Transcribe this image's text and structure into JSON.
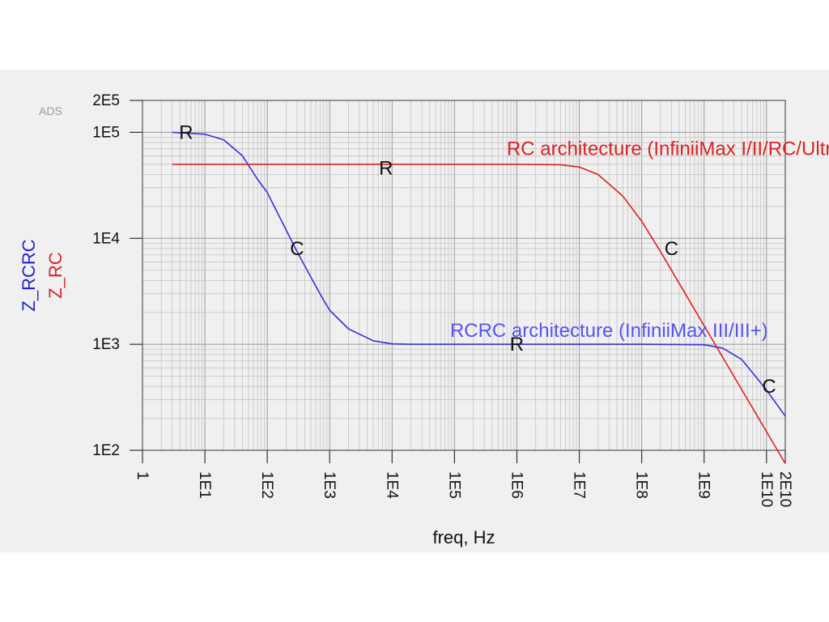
{
  "watermark": "ADS",
  "chart_data": {
    "type": "line",
    "xscale": "log",
    "yscale": "log",
    "xlabel": "freq, Hz",
    "xlim": [
      1,
      20000000000
    ],
    "ylim": [
      100,
      200000
    ],
    "x_ticks": [
      {
        "value": 1,
        "label": "1"
      },
      {
        "value": 10,
        "label": "1E1"
      },
      {
        "value": 100,
        "label": "1E2"
      },
      {
        "value": 1000,
        "label": "1E3"
      },
      {
        "value": 10000,
        "label": "1E4"
      },
      {
        "value": 100000,
        "label": "1E5"
      },
      {
        "value": 1000000,
        "label": "1E6"
      },
      {
        "value": 10000000,
        "label": "1E7"
      },
      {
        "value": 100000000,
        "label": "1E8"
      },
      {
        "value": 1000000000,
        "label": "1E9"
      },
      {
        "value": 10000000000,
        "label": "1E10"
      },
      {
        "value": 20000000000,
        "label": "2E10"
      }
    ],
    "y_ticks": [
      {
        "value": 100,
        "label": "1E2"
      },
      {
        "value": 1000,
        "label": "1E3"
      },
      {
        "value": 10000,
        "label": "1E4"
      },
      {
        "value": 100000,
        "label": "1E5"
      },
      {
        "value": 200000,
        "label": "2E5"
      }
    ],
    "grid": true,
    "series": [
      {
        "name": "Z_RCRC",
        "color": "#3333dd",
        "points": [
          [
            3,
            100000
          ],
          [
            10,
            96000
          ],
          [
            20,
            85000
          ],
          [
            40,
            60000
          ],
          [
            70,
            36000
          ],
          [
            100,
            27000
          ],
          [
            200,
            12000
          ],
          [
            300,
            7500
          ],
          [
            500,
            4300
          ],
          [
            800,
            2600
          ],
          [
            1000,
            2100
          ],
          [
            2000,
            1400
          ],
          [
            5000,
            1080
          ],
          [
            10000,
            1010
          ],
          [
            20000,
            1000
          ],
          [
            1000000,
            1000
          ],
          [
            100000000,
            1000
          ],
          [
            1000000000,
            990
          ],
          [
            2000000000,
            920
          ],
          [
            4000000000,
            720
          ],
          [
            7000000000,
            480
          ],
          [
            10000000000,
            370
          ],
          [
            20000000000,
            210
          ]
        ]
      },
      {
        "name": "Z_RC",
        "color": "#dd2222",
        "points": [
          [
            3,
            50000
          ],
          [
            1000000,
            50000
          ],
          [
            5000000,
            49500
          ],
          [
            10000000,
            47000
          ],
          [
            20000000,
            40000
          ],
          [
            50000000,
            25000
          ],
          [
            100000000,
            14500
          ],
          [
            200000000,
            7500
          ],
          [
            500000000,
            3000
          ],
          [
            1000000000,
            1500
          ],
          [
            2000000000,
            750
          ],
          [
            5000000000,
            300
          ],
          [
            10000000000,
            150
          ],
          [
            20000000000,
            75
          ]
        ]
      }
    ],
    "annotations": [
      {
        "text": "RC architecture (InfiniiMax I/II/RC/Ultra)",
        "x": 380000000,
        "y": 70000,
        "color": "#dd2222",
        "anchor": "middle",
        "role": "curve-label"
      },
      {
        "text": "RCRC architecture (InfiniiMax III/III+)",
        "x": 30000000,
        "y": 1350,
        "color": "#5555ee",
        "anchor": "middle",
        "role": "curve-label"
      },
      {
        "text": "R",
        "x": 5,
        "y": 100000,
        "color": "#111111",
        "anchor": "middle",
        "role": "region"
      },
      {
        "text": "C",
        "x": 300,
        "y": 8000,
        "color": "#111111",
        "anchor": "middle",
        "role": "region"
      },
      {
        "text": "R",
        "x": 8000,
        "y": 46000,
        "color": "#111111",
        "anchor": "middle",
        "role": "region"
      },
      {
        "text": "R",
        "x": 1000000,
        "y": 1000,
        "color": "#111111",
        "anchor": "middle",
        "role": "region"
      },
      {
        "text": "C",
        "x": 300000000,
        "y": 8000,
        "color": "#111111",
        "anchor": "middle",
        "role": "region"
      },
      {
        "text": "C",
        "x": 11000000000,
        "y": 400,
        "color": "#111111",
        "anchor": "middle",
        "role": "region"
      }
    ],
    "ylabels": [
      {
        "text": "Z_RCRC",
        "color": "#2222cc"
      },
      {
        "text": "Z_RC",
        "color": "#dd2222"
      }
    ]
  }
}
